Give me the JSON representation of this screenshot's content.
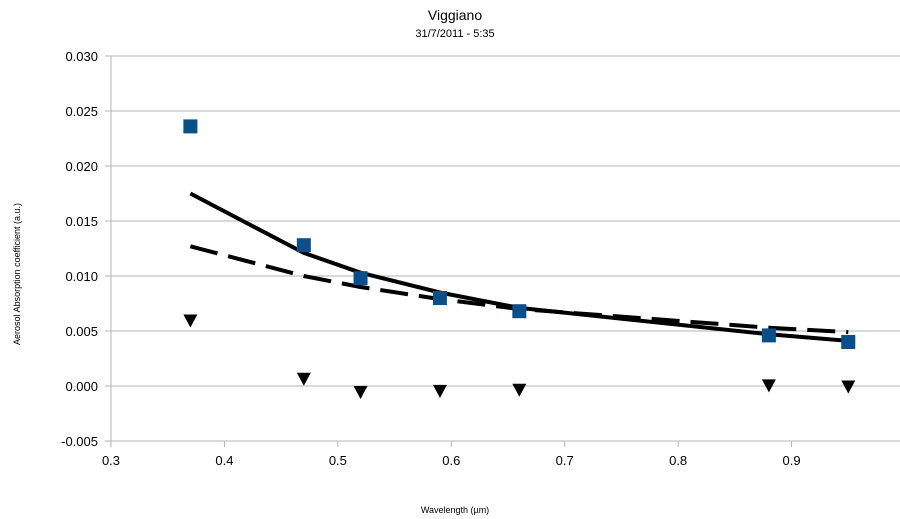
{
  "chart_data": {
    "type": "scatter",
    "title": "Viggiano",
    "subtitle": "31/7/2011 - 5:35",
    "xlabel": "Wavelength (µm)",
    "ylabel": "Aerosol Absorption coefficient (a.u.)",
    "xlim": [
      0.3,
      1.0
    ],
    "ylim": [
      -0.005,
      0.03
    ],
    "xticks": [
      0.3,
      0.4,
      0.5,
      0.6,
      0.7,
      0.8,
      0.9
    ],
    "xtick_labels": [
      "0.3",
      "0.4",
      "0.5",
      "0.6",
      "0.7",
      "0.8",
      "0.9"
    ],
    "yticks": [
      -0.005,
      0.0,
      0.005,
      0.01,
      0.015,
      0.02,
      0.025,
      0.03
    ],
    "ytick_labels": [
      "-0.005",
      "0.000",
      "0.005",
      "0.010",
      "0.015",
      "0.020",
      "0.025",
      "0.030"
    ],
    "grid": "horizontal",
    "legend": "none",
    "series": [
      {
        "marker": "square",
        "color": "#0b4f8a",
        "x": [
          0.37,
          0.47,
          0.52,
          0.59,
          0.66,
          0.88,
          0.95
        ],
        "y": [
          0.0236,
          0.0128,
          0.0098,
          0.008,
          0.0068,
          0.0046,
          0.004
        ]
      },
      {
        "marker": "triangle-down",
        "color": "#000000",
        "x": [
          0.37,
          0.47,
          0.52,
          0.59,
          0.66,
          0.88,
          0.95
        ],
        "y": [
          0.006,
          0.0007,
          -0.0005,
          -0.0004,
          -0.0003,
          0.0001,
          0.0
        ]
      },
      {
        "line": "solid",
        "color": "#000000",
        "x": [
          0.37,
          0.47,
          0.52,
          0.59,
          0.66,
          0.88,
          0.95
        ],
        "y": [
          0.0175,
          0.0121,
          0.0103,
          0.0085,
          0.0071,
          0.0047,
          0.0041
        ]
      },
      {
        "line": "dashed",
        "color": "#000000",
        "x": [
          0.37,
          0.47,
          0.52,
          0.59,
          0.66,
          0.88,
          0.95
        ],
        "y": [
          0.0127,
          0.01,
          0.009,
          0.0079,
          0.007,
          0.0053,
          0.0049
        ]
      }
    ]
  }
}
